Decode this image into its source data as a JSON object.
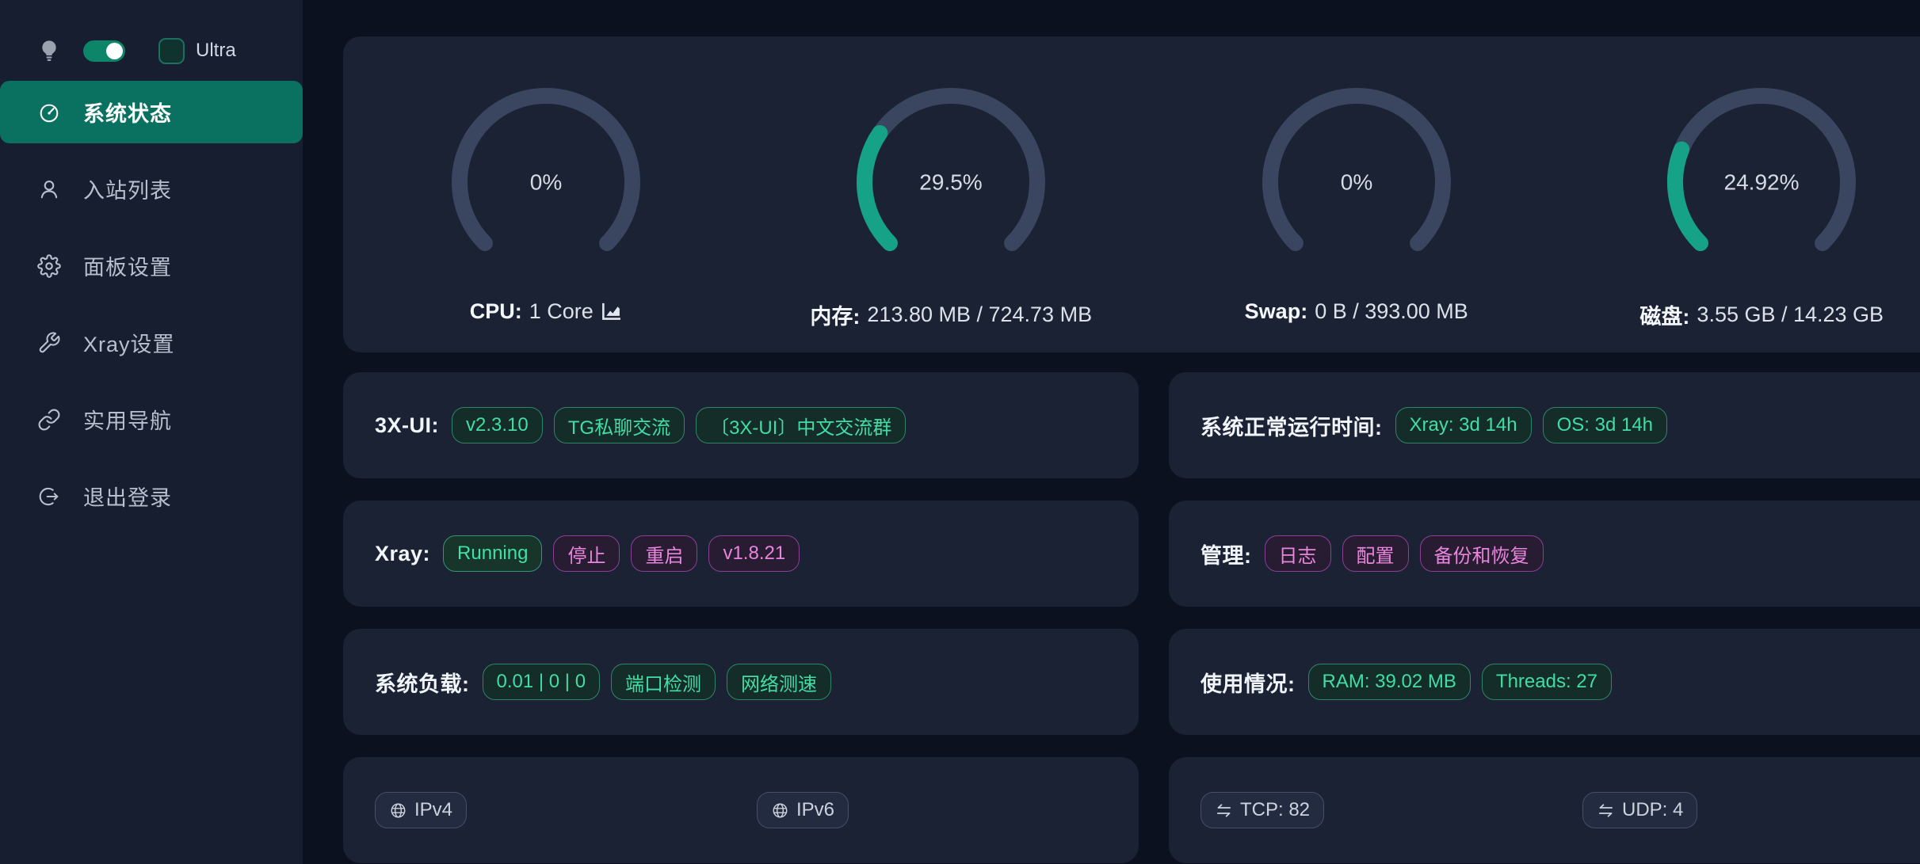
{
  "sidebar": {
    "ultra_label": "Ultra",
    "theme_toggle_on": true,
    "ultra_checked": false,
    "menu": [
      {
        "name": "sidebar-item-system-status",
        "icon": "dashboard",
        "label": "系统状态",
        "active": true
      },
      {
        "name": "sidebar-item-inbounds",
        "icon": "user",
        "label": "入站列表",
        "active": false
      },
      {
        "name": "sidebar-item-panel-settings",
        "icon": "gear",
        "label": "面板设置",
        "active": false
      },
      {
        "name": "sidebar-item-xray-settings",
        "icon": "wrench",
        "label": "Xray设置",
        "active": false
      },
      {
        "name": "sidebar-item-useful-links",
        "icon": "link",
        "label": "实用导航",
        "active": false
      },
      {
        "name": "sidebar-item-logout",
        "icon": "logout",
        "label": "退出登录",
        "active": false
      }
    ]
  },
  "gauges": [
    {
      "name": "cpu-gauge",
      "percent": 0,
      "value": "0%",
      "label_bold": "CPU:",
      "label_rest": "1 Core",
      "chart_icon": true
    },
    {
      "name": "memory-gauge",
      "percent": 29.5,
      "value": "29.5%",
      "label_bold": "内存:",
      "label_rest": "213.80 MB / 724.73 MB",
      "chart_icon": false
    },
    {
      "name": "swap-gauge",
      "percent": 0,
      "value": "0%",
      "label_bold": "Swap:",
      "label_rest": "0 B / 393.00 MB",
      "chart_icon": false
    },
    {
      "name": "disk-gauge",
      "percent": 24.92,
      "value": "24.92%",
      "label_bold": "磁盘:",
      "label_rest": "3.55 GB / 14.23 GB",
      "chart_icon": false
    }
  ],
  "cards": [
    {
      "name": "xui-card",
      "label": "3X-UI:",
      "split": false,
      "tags": [
        {
          "name": "xui-version-tag",
          "text": "v2.3.10",
          "style": "green",
          "clickable": true
        },
        {
          "name": "tg-private-chat-tag",
          "text": "TG私聊交流",
          "style": "green",
          "clickable": true
        },
        {
          "name": "tg-chinese-group-tag",
          "text": "〔3X-UI〕中文交流群",
          "style": "green",
          "clickable": true
        }
      ]
    },
    {
      "name": "uptime-card",
      "label": "系统正常运行时间:",
      "split": false,
      "tags": [
        {
          "name": "xray-uptime-tag",
          "text": "Xray: 3d 14h",
          "style": "green",
          "clickable": false
        },
        {
          "name": "os-uptime-tag",
          "text": "OS: 3d 14h",
          "style": "green",
          "clickable": false
        }
      ]
    },
    {
      "name": "xray-card",
      "label": "Xray:",
      "split": false,
      "tags": [
        {
          "name": "xray-status-tag",
          "text": "Running",
          "style": "green-strong",
          "clickable": false
        },
        {
          "name": "stop-xray-button",
          "text": "停止",
          "style": "magenta",
          "clickable": true
        },
        {
          "name": "restart-xray-button",
          "text": "重启",
          "style": "magenta",
          "clickable": true
        },
        {
          "name": "xray-version-tag",
          "text": "v1.8.21",
          "style": "magenta",
          "clickable": true
        }
      ]
    },
    {
      "name": "admin-card",
      "label": "管理:",
      "split": false,
      "tags": [
        {
          "name": "logs-button",
          "text": "日志",
          "style": "magenta",
          "clickable": true
        },
        {
          "name": "config-button",
          "text": "配置",
          "style": "magenta",
          "clickable": true
        },
        {
          "name": "backup-restore-button",
          "text": "备份和恢复",
          "style": "magenta",
          "clickable": true
        }
      ]
    },
    {
      "name": "system-load-card",
      "label": "系统负载:",
      "split": false,
      "tags": [
        {
          "name": "system-load-tag",
          "text": "0.01 | 0 | 0",
          "style": "green",
          "clickable": false
        },
        {
          "name": "port-check-button",
          "text": "端口检测",
          "style": "green",
          "clickable": true
        },
        {
          "name": "speedtest-button",
          "text": "网络测速",
          "style": "green",
          "clickable": true
        }
      ]
    },
    {
      "name": "usage-card",
      "label": "使用情况:",
      "split": false,
      "tags": [
        {
          "name": "ram-usage-tag",
          "text": "RAM: 39.02 MB",
          "style": "green",
          "clickable": false
        },
        {
          "name": "threads-tag",
          "text": "Threads: 27",
          "style": "green",
          "clickable": false
        }
      ]
    },
    {
      "name": "ip-card",
      "label": "",
      "split": true,
      "tags": [
        {
          "name": "ipv4-tag",
          "text": "IPv4",
          "style": "gray",
          "icon": "globe",
          "clickable": true
        },
        {
          "name": "ipv6-tag",
          "text": "IPv6",
          "style": "gray",
          "icon": "globe",
          "clickable": true
        }
      ]
    },
    {
      "name": "connections-card",
      "label": "",
      "split": true,
      "tags": [
        {
          "name": "tcp-count-tag",
          "text": "TCP: 82",
          "style": "gray",
          "icon": "swap",
          "clickable": false
        },
        {
          "name": "udp-count-tag",
          "text": "UDP: 4",
          "style": "gray",
          "icon": "swap",
          "clickable": false
        }
      ]
    }
  ],
  "colors": {
    "background": "#0b111e",
    "sidebar_background": "#161e30",
    "card_background": "#1a2234",
    "active_menu_background": "#0a7160",
    "toggle_green": "#0d8568",
    "gauge_green": "#15a287",
    "gauge_track": "#3a4560",
    "tag_green_text": "#41dda5",
    "tag_magenta_text": "#ea85dc",
    "tag_gray_text": "#ccd3de"
  }
}
